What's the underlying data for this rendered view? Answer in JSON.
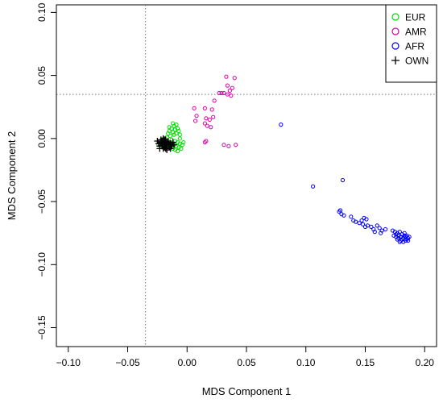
{
  "chart_data": {
    "type": "scatter",
    "title": "",
    "xlabel": "MDS Component 1",
    "ylabel": "MDS Component 2",
    "xlim": [
      -0.11,
      0.21
    ],
    "ylim": [
      -0.165,
      0.106
    ],
    "xticks": [
      -0.1,
      -0.05,
      0.0,
      0.05,
      0.1,
      0.15,
      0.2
    ],
    "xtick_labels": [
      "−0.10",
      "−0.05",
      "0.00",
      "0.05",
      "0.10",
      "0.15",
      "0.20"
    ],
    "yticks": [
      -0.15,
      -0.1,
      -0.05,
      0.0,
      0.05,
      0.1
    ],
    "ytick_labels": [
      "−0.15",
      "−0.10",
      "−0.05",
      "0.00",
      "0.05",
      "0.10"
    ],
    "reference_lines": {
      "vertical_x": -0.035,
      "horizontal_y": 0.035,
      "style": "dotted"
    },
    "legend_position": "top-right",
    "grid": false,
    "series": [
      {
        "name": "EUR",
        "marker": "circle",
        "color": "#00dd00",
        "points": [
          [
            -0.012,
            0.012
          ],
          [
            -0.011,
            0.01
          ],
          [
            -0.009,
            0.011
          ],
          [
            -0.013,
            0.008
          ],
          [
            -0.01,
            0.007
          ],
          [
            -0.008,
            0.008
          ],
          [
            -0.012,
            0.005
          ],
          [
            -0.015,
            0.006
          ],
          [
            -0.009,
            0.004
          ],
          [
            -0.011,
            0.003
          ],
          [
            -0.014,
            0.002
          ],
          [
            -0.017,
            0.001
          ],
          [
            -0.02,
            0.0
          ],
          [
            -0.006,
            0.003
          ],
          [
            -0.007,
            0.006
          ],
          [
            -0.013,
            -0.001
          ],
          [
            -0.01,
            -0.002
          ],
          [
            -0.008,
            -0.003
          ],
          [
            -0.006,
            -0.004
          ],
          [
            -0.004,
            -0.005
          ],
          [
            -0.011,
            -0.005
          ],
          [
            -0.009,
            -0.006
          ],
          [
            -0.007,
            -0.007
          ],
          [
            -0.005,
            -0.008
          ],
          [
            -0.014,
            -0.003
          ],
          [
            -0.016,
            -0.004
          ],
          [
            -0.018,
            -0.006
          ],
          [
            -0.021,
            -0.007
          ],
          [
            -0.019,
            -0.002
          ],
          [
            -0.022,
            -0.003
          ],
          [
            -0.024,
            -0.005
          ],
          [
            -0.012,
            -0.008
          ],
          [
            -0.01,
            -0.009
          ],
          [
            -0.008,
            -0.01
          ],
          [
            -0.015,
            0.009
          ],
          [
            -0.016,
            0.004
          ],
          [
            -0.006,
            0.0
          ],
          [
            -0.003,
            -0.003
          ]
        ]
      },
      {
        "name": "AMR",
        "marker": "circle",
        "color": "#dd00aa",
        "points": [
          [
            0.033,
            0.049
          ],
          [
            0.04,
            0.048
          ],
          [
            0.034,
            0.042
          ],
          [
            0.038,
            0.04
          ],
          [
            0.036,
            0.038
          ],
          [
            0.027,
            0.036
          ],
          [
            0.029,
            0.036
          ],
          [
            0.031,
            0.036
          ],
          [
            0.034,
            0.035
          ],
          [
            0.037,
            0.034
          ],
          [
            0.023,
            0.03
          ],
          [
            0.006,
            0.024
          ],
          [
            0.015,
            0.024
          ],
          [
            0.021,
            0.023
          ],
          [
            0.008,
            0.018
          ],
          [
            0.016,
            0.016
          ],
          [
            0.019,
            0.015
          ],
          [
            0.022,
            0.017
          ],
          [
            0.015,
            0.012
          ],
          [
            0.017,
            0.01
          ],
          [
            0.007,
            0.014
          ],
          [
            0.02,
            0.009
          ],
          [
            0.016,
            -0.002
          ],
          [
            0.015,
            -0.003
          ],
          [
            0.031,
            -0.005
          ],
          [
            0.035,
            -0.006
          ],
          [
            0.041,
            -0.005
          ]
        ]
      },
      {
        "name": "AFR",
        "marker": "circle",
        "color": "#0000ff",
        "points": [
          [
            0.079,
            0.011
          ],
          [
            0.106,
            -0.038
          ],
          [
            0.131,
            -0.033
          ],
          [
            0.128,
            -0.058
          ],
          [
            0.129,
            -0.057
          ],
          [
            0.13,
            -0.06
          ],
          [
            0.132,
            -0.061
          ],
          [
            0.138,
            -0.062
          ],
          [
            0.14,
            -0.065
          ],
          [
            0.142,
            -0.066
          ],
          [
            0.145,
            -0.067
          ],
          [
            0.147,
            -0.065
          ],
          [
            0.149,
            -0.063
          ],
          [
            0.151,
            -0.064
          ],
          [
            0.148,
            -0.068
          ],
          [
            0.15,
            -0.07
          ],
          [
            0.152,
            -0.069
          ],
          [
            0.155,
            -0.07
          ],
          [
            0.157,
            -0.072
          ],
          [
            0.16,
            -0.069
          ],
          [
            0.158,
            -0.074
          ],
          [
            0.162,
            -0.071
          ],
          [
            0.164,
            -0.073
          ],
          [
            0.167,
            -0.072
          ],
          [
            0.163,
            -0.075
          ],
          [
            0.173,
            -0.073
          ],
          [
            0.175,
            -0.074
          ],
          [
            0.176,
            -0.076
          ],
          [
            0.177,
            -0.075
          ],
          [
            0.178,
            -0.077
          ],
          [
            0.179,
            -0.074
          ],
          [
            0.18,
            -0.078
          ],
          [
            0.181,
            -0.076
          ],
          [
            0.182,
            -0.079
          ],
          [
            0.183,
            -0.077
          ],
          [
            0.184,
            -0.078
          ],
          [
            0.185,
            -0.08
          ],
          [
            0.186,
            -0.079
          ],
          [
            0.178,
            -0.079
          ],
          [
            0.176,
            -0.078
          ],
          [
            0.181,
            -0.08
          ],
          [
            0.183,
            -0.075
          ],
          [
            0.185,
            -0.077
          ],
          [
            0.186,
            -0.081
          ],
          [
            0.184,
            -0.081
          ],
          [
            0.18,
            -0.081
          ],
          [
            0.177,
            -0.08
          ],
          [
            0.174,
            -0.077
          ],
          [
            0.179,
            -0.082
          ],
          [
            0.182,
            -0.082
          ],
          [
            0.187,
            -0.078
          ]
        ]
      },
      {
        "name": "OWN",
        "marker": "plus",
        "color": "#000000",
        "points": [
          [
            -0.022,
            -0.003
          ],
          [
            -0.021,
            -0.004
          ],
          [
            -0.02,
            -0.002
          ],
          [
            -0.019,
            -0.005
          ],
          [
            -0.018,
            -0.003
          ],
          [
            -0.017,
            -0.004
          ],
          [
            -0.023,
            -0.006
          ],
          [
            -0.021,
            -0.006
          ],
          [
            -0.019,
            -0.007
          ],
          [
            -0.017,
            -0.006
          ],
          [
            -0.016,
            -0.003
          ],
          [
            -0.015,
            -0.005
          ],
          [
            -0.024,
            -0.004
          ],
          [
            -0.02,
            -0.008
          ],
          [
            -0.018,
            -0.008
          ],
          [
            -0.022,
            -0.001
          ],
          [
            -0.02,
            0.0
          ],
          [
            -0.018,
            -0.001
          ],
          [
            -0.016,
            -0.002
          ],
          [
            -0.014,
            -0.004
          ],
          [
            -0.013,
            -0.006
          ],
          [
            -0.015,
            -0.007
          ],
          [
            -0.017,
            -0.009
          ],
          [
            -0.025,
            -0.002
          ],
          [
            -0.023,
            -0.008
          ],
          [
            -0.012,
            -0.003
          ],
          [
            -0.011,
            -0.005
          ],
          [
            -0.021,
            -0.002
          ],
          [
            -0.019,
            -0.001
          ],
          [
            -0.014,
            -0.008
          ]
        ]
      }
    ]
  }
}
